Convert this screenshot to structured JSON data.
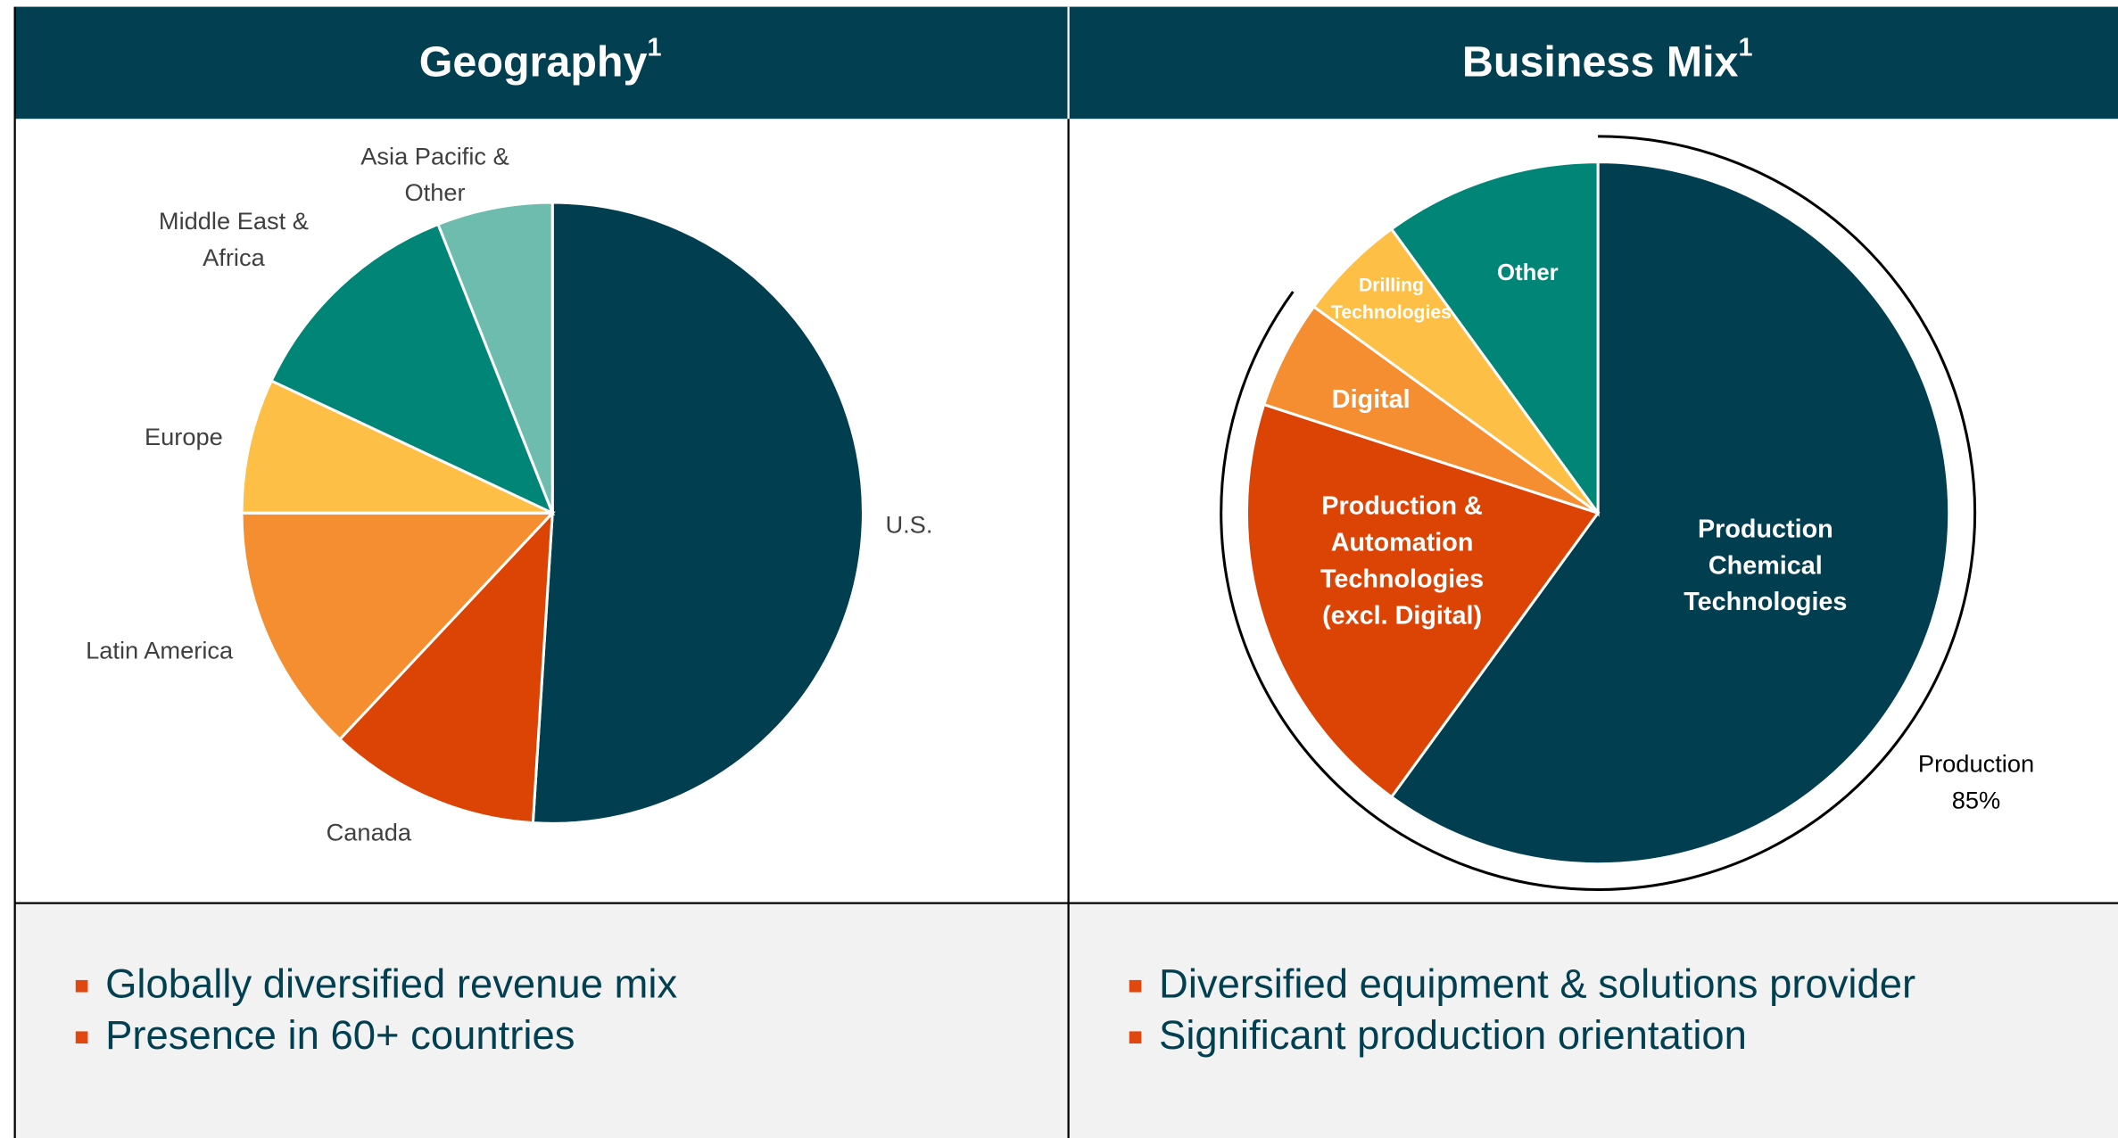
{
  "chart_data": [
    {
      "type": "pie",
      "title": "Geography",
      "footnote_mark": "1",
      "categories": [
        [
          "U.S."
        ],
        [
          "Canada"
        ],
        [
          "Latin America"
        ],
        [
          "Europe"
        ],
        [
          "Middle East &",
          "Africa"
        ],
        [
          "Asia Pacific &",
          "Other"
        ]
      ],
      "values": [
        51,
        11,
        13,
        7,
        12,
        6
      ],
      "colors": [
        "#013e50",
        "#dc4405",
        "#f58e30",
        "#fdbf45",
        "#018577",
        "#6dbcae"
      ]
    },
    {
      "type": "pie",
      "title": "Business Mix",
      "footnote_mark": "1",
      "categories": [
        [
          "Production",
          "Chemical",
          "Technologies"
        ],
        [
          "Production &",
          "Automation",
          "Technologies",
          "(excl. Digital)"
        ],
        [
          "Digital"
        ],
        [
          "Drilling",
          "Technologies"
        ],
        [
          "Other"
        ]
      ],
      "values": [
        60,
        20,
        5,
        5,
        10
      ],
      "colors": [
        "#013e50",
        "#dc4405",
        "#f58e30",
        "#fdbf45",
        "#018577"
      ],
      "annotations": [
        {
          "label": "Production",
          "value": 85,
          "value_label": "85%"
        }
      ]
    }
  ],
  "bullets": [
    [
      "Globally diversified revenue mix",
      "Presence in 60+ countries"
    ],
    [
      "Diversified equipment & solutions provider",
      "Significant production orientation"
    ]
  ]
}
